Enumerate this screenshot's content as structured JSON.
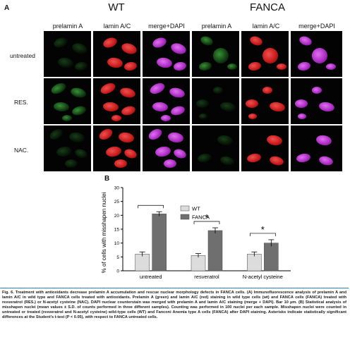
{
  "panel_a": {
    "letter": "A",
    "groups": [
      "WT",
      "FANCA"
    ],
    "columns": [
      "prelamin A",
      "lamin A/C",
      "merge+DAPI",
      "prelamin A",
      "lamin A/C",
      "merge+DAPI"
    ],
    "rows": [
      "untreated",
      "RES.",
      "NAC."
    ]
  },
  "panel_b": {
    "letter": "B"
  },
  "chart_data": {
    "type": "bar",
    "categories": [
      "untreated",
      "resveratrol",
      "N-acetyl cysteine"
    ],
    "series": [
      {
        "name": "WT",
        "values": [
          6,
          5.5,
          6
        ],
        "errors": [
          0.8,
          0.7,
          0.8
        ],
        "color": "#dcdcdc"
      },
      {
        "name": "FANCA",
        "values": [
          20.5,
          14.5,
          10
        ],
        "errors": [
          0.8,
          1.0,
          1.2
        ],
        "color": "#6f6f6f"
      }
    ],
    "ylabel": "% of cells with misshapen nuclei",
    "ylim": [
      0,
      30
    ],
    "yticks": [
      0,
      5,
      10,
      15,
      20,
      25,
      30
    ],
    "legend": "top-center",
    "significance": [
      "",
      "*",
      "*"
    ]
  },
  "caption": {
    "text": "Fig. 6.   Treatment with antioxidants decrease prelamin A accumulation and rescue nuclear morphology defects in FANCA cells. (A) Immunofluorescence analysis of prelamin A and lamin A/C in wild type and FANCA cells treated with antioxidants. Prelamin A (green) and lamin A/C (red) staining in wild type cells (wt) and FANCA cells (FANCA) treated with resveratrol (RES.) or N-acetyl cysteine (NAC). DAPI nuclear counterstain was merged with prelamin A and lamin A/C staining (merge + DAPI). Bar 10 µm. (B) Statistical analysis of misshapen nuclei (mean values ± S.D. of counts performed in three different samples). Counting was performed in 100 nuclei per each sample. Misshapen nuclei were counted in untreated or treated (resveratrol and N-acetyl cysteine) wild-type cells (WT) and Fanconi Anemia type A cells (FANCA) after DAPI staining. Asterisks indicate statistically significant differences at the Student's t-test (P < 0.05), with respect to FANCA untreated cells."
  }
}
